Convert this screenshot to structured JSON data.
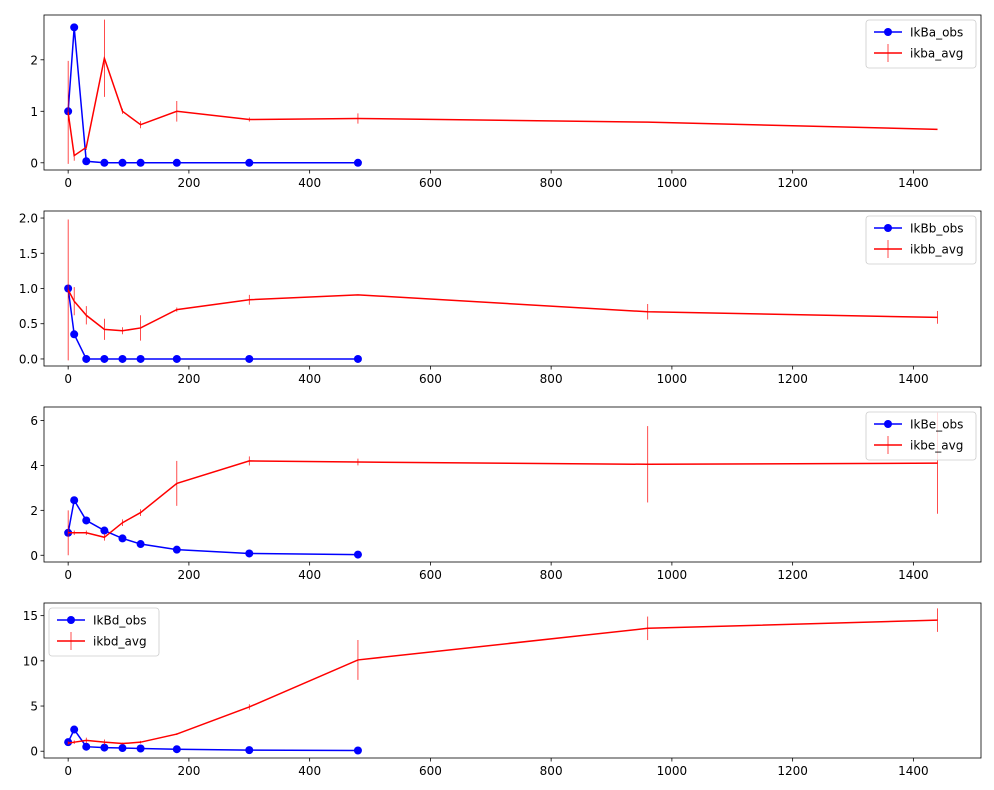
{
  "chart_data": [
    {
      "type": "line",
      "xlim": [
        -40,
        1512
      ],
      "ylim": [
        -0.14,
        2.87
      ],
      "xticks": [
        0,
        200,
        400,
        600,
        800,
        1000,
        1200,
        1400
      ],
      "yticks": [
        0,
        1,
        2
      ],
      "grid": false,
      "legend_position": "top-right",
      "series": [
        {
          "name": "IkBa_obs",
          "color": "#0000ff",
          "marker": "circle",
          "x": [
            0,
            10,
            30,
            60,
            90,
            120,
            180,
            300,
            480
          ],
          "y": [
            1.0,
            2.63,
            0.03,
            0.0,
            0.0,
            0.0,
            0.0,
            0.0,
            0.0
          ]
        },
        {
          "name": "ikba_avg",
          "color": "#ff0000",
          "marker": "errorbar",
          "x": [
            0,
            10,
            30,
            60,
            90,
            120,
            180,
            300,
            480,
            960,
            1440
          ],
          "y": [
            0.98,
            0.14,
            0.3,
            2.03,
            1.0,
            0.74,
            1.0,
            0.84,
            0.86,
            0.79,
            0.65
          ],
          "err": [
            1.0,
            0.1,
            0.05,
            0.75,
            0.05,
            0.07,
            0.2,
            0.04,
            0.1,
            0.0,
            0.0
          ]
        }
      ]
    },
    {
      "type": "line",
      "xlim": [
        -40,
        1512
      ],
      "ylim": [
        -0.1,
        2.1
      ],
      "xticks": [
        0,
        200,
        400,
        600,
        800,
        1000,
        1200,
        1400
      ],
      "yticks": [
        0.0,
        0.5,
        1.0,
        1.5,
        2.0
      ],
      "grid": false,
      "legend_position": "top-right",
      "series": [
        {
          "name": "IkBb_obs",
          "color": "#0000ff",
          "marker": "circle",
          "x": [
            0,
            10,
            30,
            60,
            90,
            120,
            180,
            300,
            480
          ],
          "y": [
            1.0,
            0.35,
            0.0,
            0.0,
            0.0,
            0.0,
            0.0,
            0.0,
            0.0
          ]
        },
        {
          "name": "ikbb_avg",
          "color": "#ff0000",
          "marker": "errorbar",
          "x": [
            0,
            10,
            30,
            60,
            90,
            120,
            180,
            300,
            480,
            960,
            1440
          ],
          "y": [
            0.98,
            0.82,
            0.62,
            0.42,
            0.4,
            0.44,
            0.7,
            0.84,
            0.91,
            0.67,
            0.59
          ],
          "err": [
            1.0,
            0.2,
            0.13,
            0.15,
            0.05,
            0.18,
            0.03,
            0.07,
            0.0,
            0.11,
            0.09
          ]
        }
      ]
    },
    {
      "type": "line",
      "xlim": [
        -40,
        1512
      ],
      "ylim": [
        -0.3,
        6.6
      ],
      "xticks": [
        0,
        200,
        400,
        600,
        800,
        1000,
        1200,
        1400
      ],
      "yticks": [
        0,
        2,
        4,
        6
      ],
      "grid": false,
      "legend_position": "top-right",
      "series": [
        {
          "name": "IkBe_obs",
          "color": "#0000ff",
          "marker": "circle",
          "x": [
            0,
            10,
            30,
            60,
            90,
            120,
            180,
            300,
            480
          ],
          "y": [
            1.0,
            2.45,
            1.55,
            1.1,
            0.75,
            0.5,
            0.25,
            0.08,
            0.03
          ]
        },
        {
          "name": "ikbe_avg",
          "color": "#ff0000",
          "marker": "errorbar",
          "x": [
            0,
            10,
            30,
            60,
            90,
            120,
            180,
            300,
            480,
            960,
            1440
          ],
          "y": [
            1.0,
            1.0,
            1.0,
            0.8,
            1.45,
            1.9,
            3.2,
            4.2,
            4.15,
            4.05,
            4.1
          ],
          "err": [
            1.0,
            0.1,
            0.1,
            0.15,
            0.15,
            0.15,
            1.0,
            0.2,
            0.15,
            1.7,
            2.25
          ]
        }
      ]
    },
    {
      "type": "line",
      "xlim": [
        -40,
        1512
      ],
      "ylim": [
        -0.75,
        16.4
      ],
      "xticks": [
        0,
        200,
        400,
        600,
        800,
        1000,
        1200,
        1400
      ],
      "yticks": [
        0,
        5,
        10,
        15
      ],
      "grid": false,
      "legend_position": "top-left",
      "series": [
        {
          "name": "IkBd_obs",
          "color": "#0000ff",
          "marker": "circle",
          "x": [
            0,
            10,
            30,
            60,
            90,
            120,
            180,
            300,
            480
          ],
          "y": [
            1.0,
            2.4,
            0.5,
            0.4,
            0.35,
            0.3,
            0.22,
            0.12,
            0.08
          ]
        },
        {
          "name": "ikbd_avg",
          "color": "#ff0000",
          "marker": "errorbar",
          "x": [
            0,
            10,
            30,
            60,
            90,
            120,
            180,
            300,
            480,
            960,
            1440
          ],
          "y": [
            0.9,
            1.0,
            1.2,
            1.0,
            0.85,
            1.0,
            1.9,
            4.9,
            10.1,
            13.6,
            14.5
          ],
          "err": [
            0.2,
            0.2,
            0.3,
            0.3,
            0.1,
            0.15,
            0.1,
            0.3,
            2.2,
            1.3,
            1.3
          ]
        }
      ]
    }
  ]
}
